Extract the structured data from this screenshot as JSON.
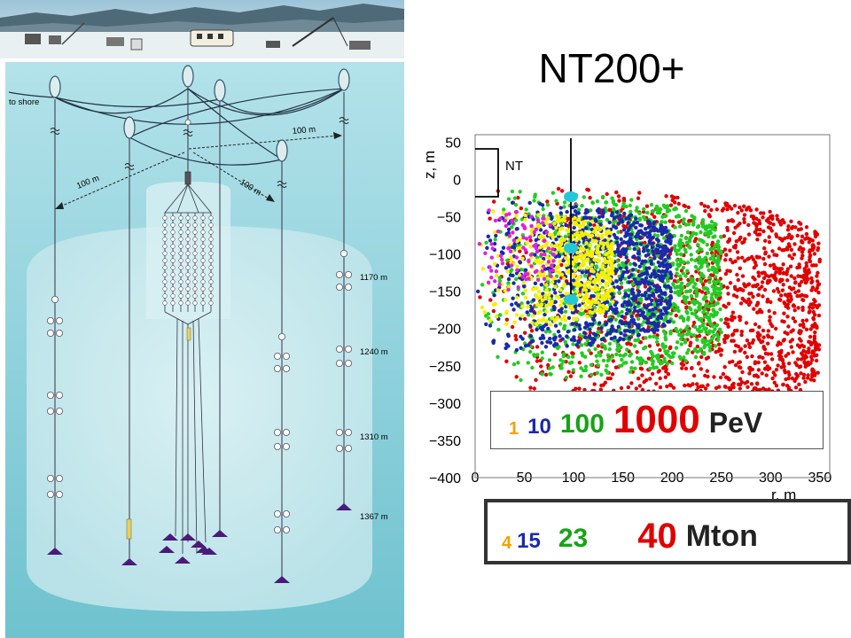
{
  "title": "NT200+",
  "diagram": {
    "to_shore_label": "to shore",
    "distance_labels": [
      "100 m",
      "100 m",
      "100 m"
    ],
    "depth_labels": [
      "1170 m",
      "1240 m",
      "1310 m",
      "1367 m"
    ]
  },
  "plot": {
    "y_axis_label": "z, m",
    "x_axis_label": "r, m",
    "nt_label": "NT",
    "y_ticks": [
      "50",
      "0",
      "−50",
      "−100",
      "−150",
      "−200",
      "−250",
      "−300",
      "−350",
      "−400"
    ],
    "x_ticks": [
      "0",
      "50",
      "100",
      "150",
      "200",
      "250",
      "300",
      "350"
    ]
  },
  "energy_legend": {
    "items": [
      {
        "text": "1",
        "color": "#f5a000",
        "size": 20
      },
      {
        "text": "10",
        "color": "#1a2aa8",
        "size": 24
      },
      {
        "text": "100",
        "color": "#17a317",
        "size": 30
      },
      {
        "text": "1000",
        "color": "#e00000",
        "size": 44
      }
    ],
    "unit": "PeV"
  },
  "mass_legend": {
    "items": [
      {
        "text": "4",
        "color": "#f5a000",
        "size": 20
      },
      {
        "text": "15",
        "color": "#1a2aa8",
        "size": 24
      },
      {
        "text": "23",
        "color": "#17a317",
        "size": 30
      },
      {
        "text": "40",
        "color": "#e00000",
        "size": 40
      }
    ],
    "unit": "Mton"
  },
  "colors": {
    "water_top": "#a6dce6",
    "water_bottom": "#5fb9c8",
    "cylinder": "#cdebef",
    "anchor": "#4a1a7a",
    "buoy": "#dcecef",
    "scatter_red": "#e00000",
    "scatter_green": "#22cc22",
    "scatter_blue": "#1a2aa8",
    "scatter_yellow": "#f5f000",
    "scatter_magenta": "#e020e0",
    "string_cyan": "#22c8d8"
  }
}
